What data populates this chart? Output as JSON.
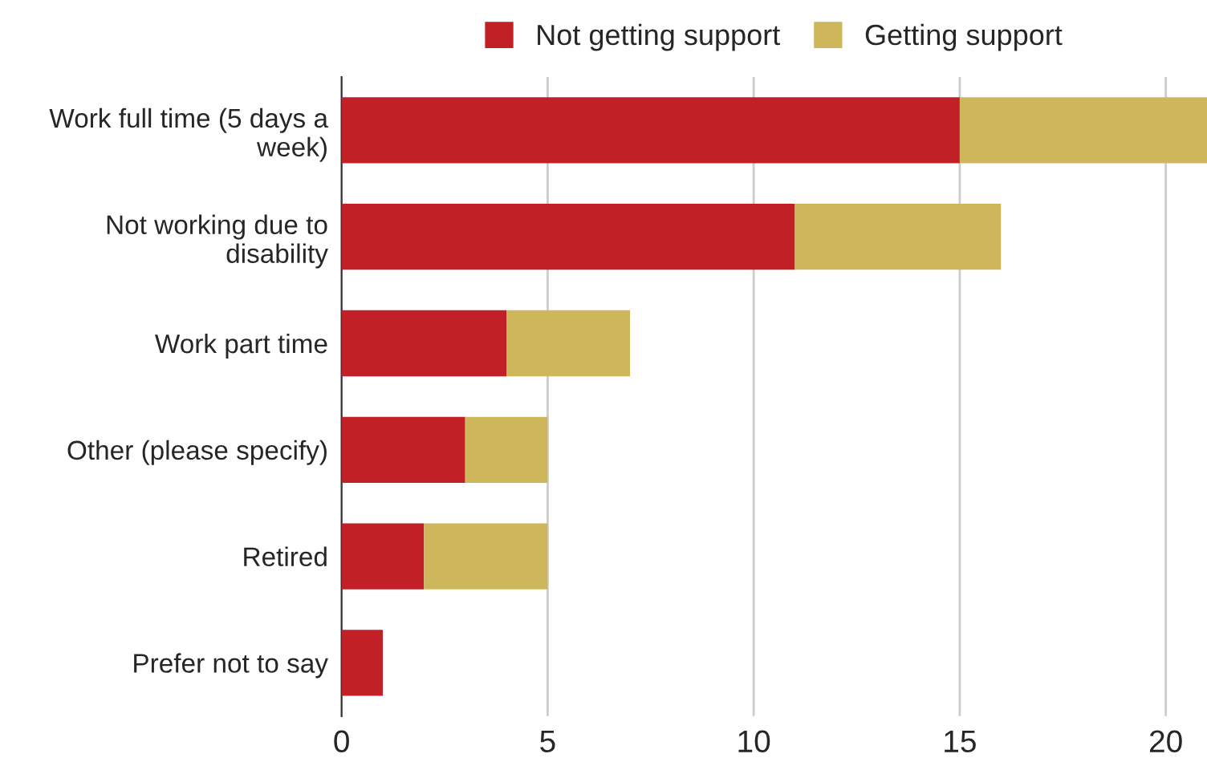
{
  "chart_data": {
    "type": "bar",
    "orientation": "horizontal",
    "stacked": true,
    "categories": [
      "Work full time (5 days a week)",
      "Not working due to disability",
      "Work part time",
      "Other (please specify)",
      "Retired",
      "Prefer not to say"
    ],
    "series": [
      {
        "name": "Not getting support",
        "color": "#c02026",
        "values": [
          15,
          11,
          4,
          3,
          2,
          1
        ]
      },
      {
        "name": "Getting support",
        "color": "#cdb75a",
        "values": [
          6,
          5,
          3,
          2,
          3,
          null
        ]
      }
    ],
    "xlim": [
      0,
      21
    ],
    "xticks": [
      0,
      5,
      10,
      15,
      20
    ],
    "grid": "x",
    "legend": "top"
  }
}
